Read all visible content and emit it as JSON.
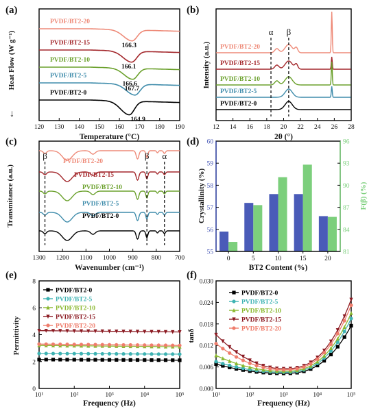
{
  "figure": {
    "panels": [
      {
        "id": "a",
        "label": "(a)",
        "chart_data": {
          "type": "line",
          "xlabel": "Temperature (°C)",
          "ylabel": "Heat Flow (W g⁻¹)",
          "xlim": [
            120,
            190
          ],
          "xticks": [
            120,
            130,
            140,
            150,
            160,
            170,
            180,
            190
          ],
          "axis_direction_symbol": "↓",
          "series": [
            {
              "name": "PVDF/BT2-20",
              "color": "#ee8a78",
              "offset": 5,
              "peaks": [
                {
                  "x": 166.3,
                  "label": "166.3"
                }
              ]
            },
            {
              "name": "PVDF/BT2-15",
              "color": "#a3272b",
              "offset": 4,
              "peaks": [
                {
                  "x": 166.1,
                  "label": "166.1"
                }
              ]
            },
            {
              "name": "PVDF/BT2-10",
              "color": "#6aa02b",
              "offset": 3,
              "peaks": [
                {
                  "x": 166.6,
                  "label": "166.6"
                }
              ]
            },
            {
              "name": "PVDF/BT2-5",
              "color": "#3f8cab",
              "offset": 2,
              "peaks": [
                {
                  "x": 167.7,
                  "label": "167.7"
                }
              ]
            },
            {
              "name": "PVDF/BT2-0",
              "color": "#000000",
              "offset": 1,
              "peaks": [
                {
                  "x": 164.9,
                  "label": "164.9"
                }
              ]
            }
          ]
        }
      },
      {
        "id": "b",
        "label": "(b)",
        "chart_data": {
          "type": "line",
          "xlabel": "2θ (°)",
          "ylabel": "Intensity (a.u.)",
          "xlim": [
            12,
            28
          ],
          "xticks": [
            12,
            14,
            16,
            18,
            20,
            22,
            24,
            26,
            28
          ],
          "markers": [
            {
              "symbol": "α",
              "x": 18.5
            },
            {
              "symbol": "β",
              "x": 20.6
            }
          ],
          "series": [
            {
              "name": "PVDF/BT2-20",
              "color": "#ee8a78"
            },
            {
              "name": "PVDF/BT2-15",
              "color": "#a3272b"
            },
            {
              "name": "PVDF/BT2-10",
              "color": "#6aa02b"
            },
            {
              "name": "PVDF/BT2-5",
              "color": "#3f8cab"
            },
            {
              "name": "PVDF/BT2-0",
              "color": "#000000"
            }
          ]
        }
      },
      {
        "id": "c",
        "label": "(c)",
        "chart_data": {
          "type": "line",
          "xlabel": "Wavenumber (cm⁻¹)",
          "ylabel": "Transmitance (a.u.)",
          "xlim": [
            1300,
            700
          ],
          "xticks": [
            1300,
            1200,
            1100,
            1000,
            900,
            800,
            700
          ],
          "markers": [
            {
              "symbol": "β",
              "x": 1275
            },
            {
              "symbol": "β",
              "x": 840
            },
            {
              "symbol": "α",
              "x": 765
            }
          ],
          "series": [
            {
              "name": "PVDF/BT2-20",
              "color": "#ee8a78"
            },
            {
              "name": "PVDF/BT2-15",
              "color": "#a3272b"
            },
            {
              "name": "PVDF/BT2-10",
              "color": "#6aa02b"
            },
            {
              "name": "PVDF/BT2-5",
              "color": "#3f8cab"
            },
            {
              "name": "PVDF/BT2-0",
              "color": "#000000"
            }
          ]
        }
      },
      {
        "id": "d",
        "label": "(d)",
        "chart_data": {
          "type": "bar",
          "xlabel": "BT2 Content (%)",
          "ylabel": "Crystallinity (%)",
          "y2label": "F(β) (%)",
          "categories": [
            "0",
            "5",
            "10",
            "15",
            "20"
          ],
          "ylim": [
            55,
            60
          ],
          "yticks": [
            55,
            56,
            57,
            58,
            59,
            60
          ],
          "y2lim": [
            81,
            96
          ],
          "y2ticks": [
            81,
            84,
            87,
            90,
            93,
            96
          ],
          "series": [
            {
              "axis": "left",
              "color": "#4a5bb8",
              "values": [
                55.9,
                57.2,
                57.6,
                57.6,
                56.6
              ]
            },
            {
              "axis": "right",
              "color": "#7ccf7c",
              "values": [
                82.3,
                87.3,
                91.1,
                92.8,
                85.7
              ]
            }
          ]
        }
      },
      {
        "id": "e",
        "label": "(e)",
        "chart_data": {
          "type": "line",
          "xlabel": "Frequency (Hz)",
          "ylabel": "Permittivity",
          "xscale": "log",
          "xlim": [
            10,
            100000
          ],
          "xticks": [
            "10¹",
            "10²",
            "10³",
            "10⁴",
            "10⁵"
          ],
          "ylim": [
            0,
            8
          ],
          "yticks": [
            0,
            2,
            4,
            6,
            8
          ],
          "series": [
            {
              "name": "PVDF/BT2-0",
              "color": "#000000",
              "marker": "square",
              "start": 2.15,
              "end": 2.1
            },
            {
              "name": "PVDF/BT2-5",
              "color": "#3fb3b3",
              "marker": "circle",
              "start": 2.6,
              "end": 2.55
            },
            {
              "name": "PVDF/BT2-10",
              "color": "#8ab82f",
              "marker": "triangle",
              "start": 3.2,
              "end": 3.1
            },
            {
              "name": "PVDF/BT2-15",
              "color": "#8b1a22",
              "marker": "triangle-down",
              "start": 4.3,
              "end": 4.2
            },
            {
              "name": "PVDF/BT2-20",
              "color": "#ef7d6c",
              "marker": "circle",
              "start": 3.3,
              "end": 3.2
            }
          ]
        }
      },
      {
        "id": "f",
        "label": "(f)",
        "chart_data": {
          "type": "line",
          "xlabel": "Frequency (Hz)",
          "ylabel": "tanδ",
          "xscale": "log",
          "xlim": [
            10,
            100000
          ],
          "xticks": [
            "10¹",
            "10²",
            "10³",
            "10⁴",
            "10⁵"
          ],
          "ylim": [
            0,
            0.03
          ],
          "yticks": [
            "0.000",
            "0.006",
            "0.012",
            "0.018",
            "0.024",
            "0.030"
          ],
          "series": [
            {
              "name": "PVDF/BT2-0",
              "color": "#000000",
              "marker": "square",
              "y_start": 0.0068,
              "y_min": 0.0042,
              "y_end": 0.0175
            },
            {
              "name": "PVDF/BT2-5",
              "color": "#3fb3b3",
              "marker": "circle",
              "y_start": 0.0075,
              "y_min": 0.0045,
              "y_end": 0.0195
            },
            {
              "name": "PVDF/BT2-10",
              "color": "#8ab82f",
              "marker": "triangle",
              "y_start": 0.0092,
              "y_min": 0.0048,
              "y_end": 0.021
            },
            {
              "name": "PVDF/BT2-15",
              "color": "#8b1a22",
              "marker": "triangle-down",
              "y_start": 0.015,
              "y_min": 0.0055,
              "y_end": 0.0248
            },
            {
              "name": "PVDF/BT2-20",
              "color": "#ef7d6c",
              "marker": "circle",
              "y_start": 0.0125,
              "y_min": 0.0052,
              "y_end": 0.0232
            }
          ]
        }
      }
    ]
  }
}
